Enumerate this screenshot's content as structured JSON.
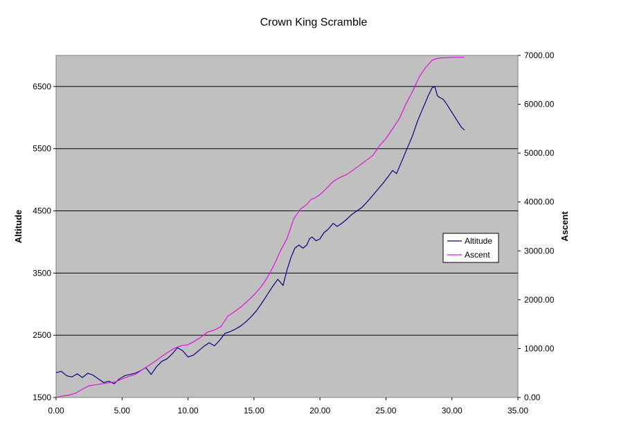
{
  "chart_data": {
    "type": "line",
    "title": "Crown King Scramble",
    "xlabel": "",
    "ylabel": "Altitude",
    "y2label": "Ascent",
    "xlim": [
      0,
      35
    ],
    "ylim": [
      1500,
      7000
    ],
    "y2lim": [
      0,
      7000
    ],
    "x_ticks": [
      "0.00",
      "5.00",
      "10.00",
      "15.00",
      "20.00",
      "25.00",
      "30.00",
      "35.00"
    ],
    "y_ticks": [
      "1500",
      "2500",
      "3500",
      "4500",
      "5500",
      "6500"
    ],
    "y2_ticks": [
      "0.00",
      "1000.00",
      "2000.00",
      "3000.00",
      "4000.00",
      "5000.00",
      "6000.00",
      "7000.00"
    ],
    "grid": true,
    "legend": "right",
    "plot_background": "#c0c0c0",
    "series": [
      {
        "name": "Altitude",
        "axis": "left",
        "color": "#000080",
        "x": [
          0,
          0.4,
          0.8,
          1.2,
          1.6,
          2.0,
          2.4,
          2.8,
          3.2,
          3.6,
          4.0,
          4.4,
          4.8,
          5.2,
          5.6,
          6.0,
          6.4,
          6.8,
          7.2,
          7.6,
          8.0,
          8.4,
          8.8,
          9.2,
          9.6,
          10.0,
          10.4,
          10.8,
          11.2,
          11.6,
          12.0,
          12.4,
          12.8,
          13.2,
          13.6,
          14.0,
          14.4,
          14.8,
          15.2,
          15.6,
          16.0,
          16.4,
          16.8,
          17.2,
          17.5,
          17.8,
          18.1,
          18.4,
          18.7,
          19.0,
          19.2,
          19.4,
          19.7,
          20.0,
          20.3,
          20.6,
          21.0,
          21.3,
          21.6,
          22.0,
          22.4,
          22.8,
          23.2,
          23.6,
          24.0,
          24.4,
          24.8,
          25.2,
          25.5,
          25.8,
          26.2,
          26.6,
          27.0,
          27.4,
          27.8,
          28.2,
          28.5,
          28.7,
          28.9,
          29.1,
          29.3,
          29.5,
          29.8,
          30.1,
          30.4,
          30.7,
          30.95
        ],
        "y": [
          1900,
          1920,
          1850,
          1830,
          1880,
          1820,
          1890,
          1860,
          1800,
          1740,
          1760,
          1720,
          1800,
          1850,
          1870,
          1890,
          1930,
          1980,
          1870,
          1990,
          2080,
          2120,
          2200,
          2300,
          2250,
          2150,
          2180,
          2250,
          2320,
          2380,
          2330,
          2420,
          2530,
          2560,
          2600,
          2650,
          2720,
          2800,
          2900,
          3020,
          3150,
          3280,
          3400,
          3300,
          3550,
          3750,
          3900,
          3950,
          3900,
          3950,
          4050,
          4080,
          4020,
          4050,
          4150,
          4200,
          4300,
          4250,
          4290,
          4360,
          4440,
          4500,
          4560,
          4650,
          4750,
          4850,
          4950,
          5060,
          5150,
          5100,
          5300,
          5500,
          5700,
          5950,
          6150,
          6350,
          6480,
          6500,
          6350,
          6320,
          6300,
          6250,
          6150,
          6050,
          5950,
          5850,
          5800
        ]
      },
      {
        "name": "Ascent",
        "axis": "right",
        "color": "#e010e0",
        "x": [
          0,
          0.5,
          1.0,
          1.5,
          2.0,
          2.5,
          3.0,
          3.5,
          4.0,
          4.5,
          5.0,
          5.5,
          6.0,
          6.5,
          7.0,
          7.5,
          8.0,
          8.5,
          9.0,
          9.5,
          10.0,
          10.5,
          11.0,
          11.5,
          12.0,
          12.5,
          13.0,
          13.5,
          14.0,
          14.5,
          15.0,
          15.5,
          16.0,
          16.5,
          17.0,
          17.5,
          18.0,
          18.5,
          19.0,
          19.3,
          19.6,
          20.0,
          20.5,
          21.0,
          21.5,
          22.0,
          22.5,
          23.0,
          23.5,
          24.0,
          24.5,
          25.0,
          25.5,
          26.0,
          26.5,
          27.0,
          27.5,
          28.0,
          28.5,
          28.8,
          29.2,
          29.6,
          30.0,
          30.5,
          30.95
        ],
        "y": [
          0,
          30,
          50,
          90,
          170,
          240,
          260,
          280,
          300,
          320,
          380,
          430,
          470,
          560,
          650,
          740,
          840,
          930,
          1010,
          1060,
          1080,
          1150,
          1240,
          1340,
          1380,
          1450,
          1660,
          1750,
          1850,
          1970,
          2100,
          2250,
          2450,
          2700,
          3000,
          3250,
          3650,
          3850,
          3950,
          4050,
          4080,
          4150,
          4280,
          4420,
          4500,
          4560,
          4650,
          4750,
          4850,
          4950,
          5150,
          5300,
          5500,
          5700,
          6000,
          6250,
          6550,
          6750,
          6900,
          6930,
          6950,
          6950,
          6960,
          6960,
          6960
        ]
      }
    ]
  }
}
